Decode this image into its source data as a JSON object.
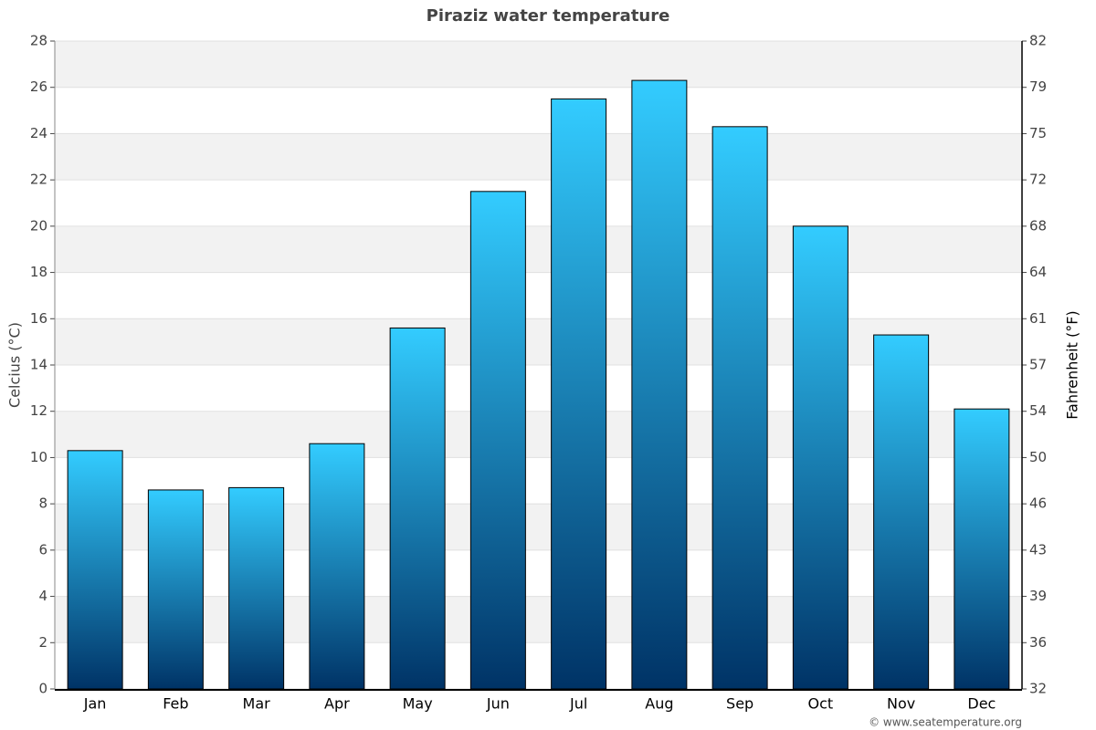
{
  "chart_data": {
    "type": "bar",
    "title": "Piraziz water temperature",
    "y_label": "Celcius (°C)",
    "y2_label": "Fahrenheit (°F)",
    "credit": "© www.seatemperature.org",
    "categories": [
      "Jan",
      "Feb",
      "Mar",
      "Apr",
      "May",
      "Jun",
      "Jul",
      "Aug",
      "Sep",
      "Oct",
      "Nov",
      "Dec"
    ],
    "values": [
      10.3,
      8.6,
      8.7,
      10.6,
      15.6,
      21.5,
      25.5,
      26.3,
      24.3,
      20.0,
      15.3,
      12.1
    ],
    "gradient": [
      "#33ccff",
      "#003366"
    ],
    "ylim": [
      0,
      28
    ],
    "yticks": [
      0,
      2,
      4,
      6,
      8,
      10,
      12,
      14,
      16,
      18,
      20,
      22,
      24,
      26,
      28
    ],
    "y2lim": [
      32,
      82.4
    ],
    "y2ticks": [
      32,
      {
        "value": 35.6,
        "label": "36"
      },
      {
        "value": 39.2,
        "label": "39"
      },
      {
        "value": 42.8,
        "label": "43"
      },
      {
        "value": 46.4,
        "label": "46"
      },
      50,
      {
        "value": 53.6,
        "label": "54"
      },
      {
        "value": 57.2,
        "label": "57"
      },
      {
        "value": 60.8,
        "label": "61"
      },
      {
        "value": 64.4,
        "label": "64"
      },
      68,
      {
        "value": 71.6,
        "label": "72"
      },
      {
        "value": 75.2,
        "label": "75"
      },
      {
        "value": 78.8,
        "label": "79"
      },
      {
        "value": 82.4,
        "label": "82"
      }
    ],
    "grid": true
  }
}
